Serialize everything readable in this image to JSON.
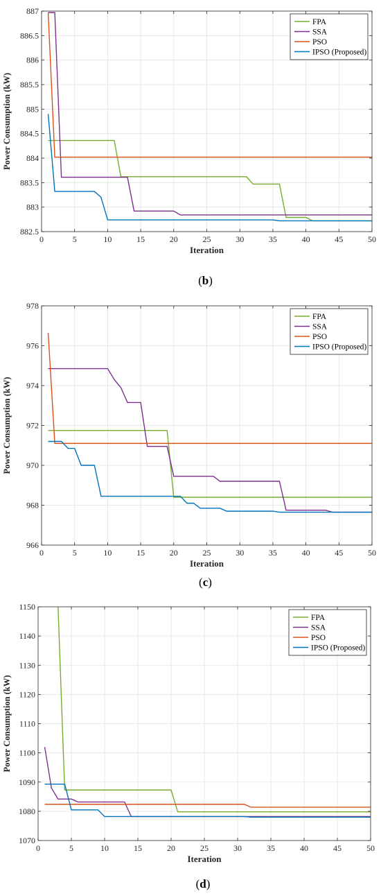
{
  "figure": {
    "panels": [
      {
        "caption_open": "(",
        "caption_letter": "b",
        "caption_close": ")"
      },
      {
        "caption_open": "(",
        "caption_letter": "c",
        "caption_close": ")"
      },
      {
        "caption_open": "(",
        "caption_letter": "d",
        "caption_close": ")"
      }
    ]
  },
  "chart_data": [
    {
      "type": "line",
      "title": "",
      "xlabel": "Iteration",
      "ylabel": "Power Consumption (kW)",
      "xlim": [
        0,
        50
      ],
      "ylim": [
        882.5,
        887
      ],
      "xticks": [
        0,
        5,
        10,
        15,
        20,
        25,
        30,
        35,
        40,
        45,
        50
      ],
      "yticks": [
        882.5,
        883,
        883.5,
        884,
        884.5,
        885,
        885.5,
        886,
        886.5,
        887
      ],
      "ytick_labels": [
        "882.5",
        "883",
        "883.5",
        "884",
        "884.5",
        "885",
        "885.5",
        "886",
        "886.5",
        "887"
      ],
      "grid": true,
      "legend_position": "top-right",
      "series": [
        {
          "name": "FPA",
          "color": "#77ac30",
          "points": [
            [
              1,
              884.36
            ],
            [
              11,
              884.36
            ],
            [
              12,
              883.62
            ],
            [
              31,
              883.62
            ],
            [
              32,
              883.47
            ],
            [
              36,
              883.47
            ],
            [
              37,
              882.79
            ],
            [
              40,
              882.79
            ],
            [
              41,
              882.72
            ],
            [
              50,
              882.72
            ]
          ]
        },
        {
          "name": "SSA",
          "color": "#7e2f8e",
          "points": [
            [
              1,
              886.97
            ],
            [
              2,
              886.97
            ],
            [
              3,
              883.61
            ],
            [
              13,
              883.61
            ],
            [
              14,
              882.92
            ],
            [
              20,
              882.92
            ],
            [
              21,
              882.84
            ],
            [
              50,
              882.84
            ]
          ]
        },
        {
          "name": "PSO",
          "color": "#d95319",
          "points": [
            [
              1,
              886.97
            ],
            [
              2,
              884.02
            ],
            [
              50,
              884.02
            ]
          ]
        },
        {
          "name": "IPSO (Proposed)",
          "color": "#0072bd",
          "points": [
            [
              1,
              884.9
            ],
            [
              2,
              883.32
            ],
            [
              8,
              883.32
            ],
            [
              9,
              883.2
            ],
            [
              10,
              882.74
            ],
            [
              35,
              882.74
            ],
            [
              36,
              882.72
            ],
            [
              50,
              882.72
            ]
          ]
        }
      ]
    },
    {
      "type": "line",
      "title": "",
      "xlabel": "Iteration",
      "ylabel": "Power Consumption (kW)",
      "xlim": [
        0,
        50
      ],
      "ylim": [
        966,
        978
      ],
      "xticks": [
        0,
        5,
        10,
        15,
        20,
        25,
        30,
        35,
        40,
        45,
        50
      ],
      "yticks": [
        966,
        968,
        970,
        972,
        974,
        976,
        978
      ],
      "ytick_labels": [
        "966",
        "968",
        "970",
        "972",
        "974",
        "976",
        "978"
      ],
      "grid": true,
      "legend_position": "top-right",
      "series": [
        {
          "name": "FPA",
          "color": "#77ac30",
          "points": [
            [
              1,
              971.75
            ],
            [
              19,
              971.75
            ],
            [
              20,
              968.4
            ],
            [
              50,
              968.4
            ]
          ]
        },
        {
          "name": "SSA",
          "color": "#7e2f8e",
          "points": [
            [
              1,
              974.85
            ],
            [
              10,
              974.85
            ],
            [
              11,
              974.3
            ],
            [
              12,
              973.9
            ],
            [
              13,
              973.15
            ],
            [
              15,
              973.15
            ],
            [
              16,
              970.95
            ],
            [
              19,
              970.95
            ],
            [
              20,
              969.45
            ],
            [
              26,
              969.45
            ],
            [
              27,
              969.2
            ],
            [
              36,
              969.2
            ],
            [
              37,
              967.75
            ],
            [
              43,
              967.75
            ],
            [
              44,
              967.65
            ],
            [
              50,
              967.65
            ]
          ]
        },
        {
          "name": "PSO",
          "color": "#d95319",
          "points": [
            [
              1,
              976.65
            ],
            [
              2,
              971.1
            ],
            [
              50,
              971.1
            ]
          ]
        },
        {
          "name": "IPSO (Proposed)",
          "color": "#0072bd",
          "points": [
            [
              1,
              971.2
            ],
            [
              3,
              971.2
            ],
            [
              4,
              970.85
            ],
            [
              5,
              970.85
            ],
            [
              6,
              970.0
            ],
            [
              8,
              970.0
            ],
            [
              9,
              968.45
            ],
            [
              21,
              968.45
            ],
            [
              22,
              968.1
            ],
            [
              23,
              968.1
            ],
            [
              24,
              967.85
            ],
            [
              27,
              967.85
            ],
            [
              28,
              967.7
            ],
            [
              35,
              967.7
            ],
            [
              36,
              967.65
            ],
            [
              50,
              967.65
            ]
          ]
        }
      ]
    },
    {
      "type": "line",
      "title": "",
      "xlabel": "Iteration",
      "ylabel": "Power Consumption (kW)",
      "xlim": [
        0,
        50
      ],
      "ylim": [
        1070,
        1150
      ],
      "xticks": [
        0,
        5,
        10,
        15,
        20,
        25,
        30,
        35,
        40,
        45,
        50
      ],
      "yticks": [
        1070,
        1080,
        1090,
        1100,
        1110,
        1120,
        1130,
        1140,
        1150
      ],
      "ytick_labels": [
        "1070",
        "1080",
        "1090",
        "1100",
        "1110",
        "1120",
        "1130",
        "1140",
        "1150"
      ],
      "grid": true,
      "legend_position": "top-right",
      "series": [
        {
          "name": "FPA",
          "color": "#77ac30",
          "points": [
            [
              3,
              1150
            ],
            [
              4,
              1087.3
            ],
            [
              20,
              1087.3
            ],
            [
              21,
              1079.8
            ],
            [
              50,
              1079.8
            ]
          ]
        },
        {
          "name": "SSA",
          "color": "#7e2f8e",
          "points": [
            [
              1,
              1102
            ],
            [
              2,
              1088
            ],
            [
              3,
              1084.2
            ],
            [
              5,
              1084.2
            ],
            [
              6,
              1083.2
            ],
            [
              13,
              1083.2
            ],
            [
              14,
              1078.2
            ],
            [
              50,
              1078.2
            ]
          ]
        },
        {
          "name": "PSO",
          "color": "#d95319",
          "points": [
            [
              1,
              1082.4
            ],
            [
              31,
              1082.4
            ],
            [
              32,
              1081.4
            ],
            [
              50,
              1081.4
            ]
          ]
        },
        {
          "name": "IPSO (Proposed)",
          "color": "#0072bd",
          "points": [
            [
              1,
              1089.3
            ],
            [
              4,
              1089.3
            ],
            [
              5,
              1080.5
            ],
            [
              9,
              1080.5
            ],
            [
              10,
              1078.2
            ],
            [
              31,
              1078.2
            ],
            [
              32,
              1078.0
            ],
            [
              50,
              1078.0
            ]
          ]
        }
      ]
    }
  ]
}
